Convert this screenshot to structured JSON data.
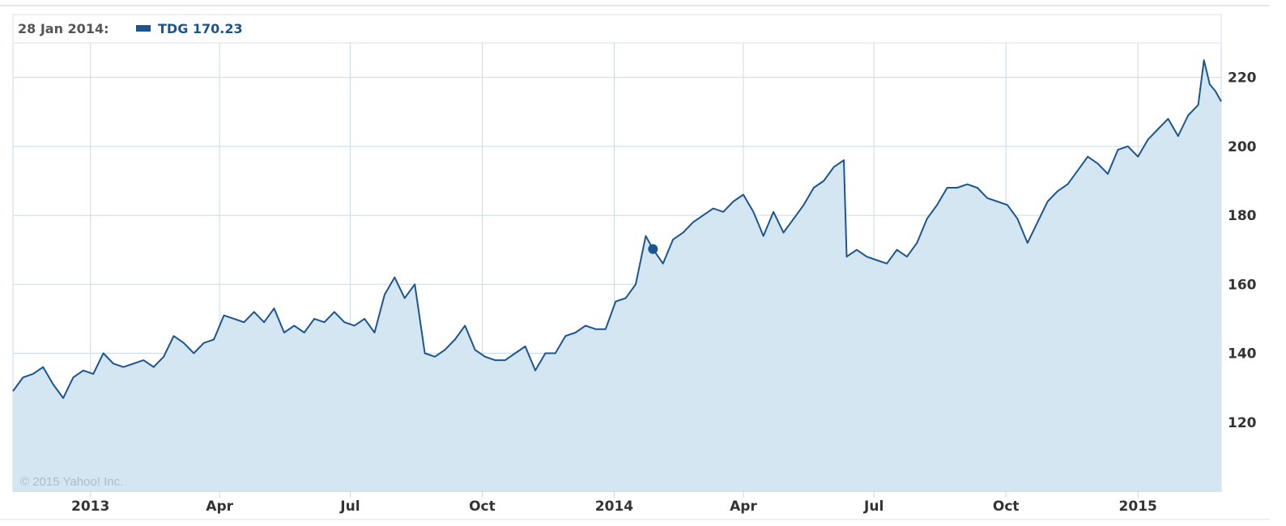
{
  "colors": {
    "line": "#1a5590",
    "area": "#d5e6f3",
    "grid": "#c9dae8",
    "axis_text": "#333333"
  },
  "readout": {
    "date": "28 Jan 2014:",
    "label": "TDG 170.23"
  },
  "copyright": "© 2015 Yahoo! Inc.",
  "chart_data": {
    "type": "area",
    "title": "",
    "xlabel": "",
    "ylabel": "",
    "ylim": [
      100,
      230
    ],
    "xlim": [
      "2012-11-08",
      "2015-02-28"
    ],
    "grid": true,
    "y_ticks": [
      120,
      140,
      160,
      180,
      200,
      220
    ],
    "x_ticks": [
      {
        "date": "2013-01-01",
        "label": "2013"
      },
      {
        "date": "2013-04-01",
        "label": "Apr"
      },
      {
        "date": "2013-07-01",
        "label": "Jul"
      },
      {
        "date": "2013-10-01",
        "label": "Oct"
      },
      {
        "date": "2014-01-01",
        "label": "2014"
      },
      {
        "date": "2014-04-01",
        "label": "Apr"
      },
      {
        "date": "2014-07-01",
        "label": "Jul"
      },
      {
        "date": "2014-10-01",
        "label": "Oct"
      },
      {
        "date": "2015-01-01",
        "label": "2015"
      }
    ],
    "highlight": {
      "date": "2014-01-28",
      "value": 170.23
    },
    "series": [
      {
        "name": "TDG",
        "points": [
          [
            "2012-11-08",
            129
          ],
          [
            "2012-11-15",
            133
          ],
          [
            "2012-11-22",
            134
          ],
          [
            "2012-11-29",
            136
          ],
          [
            "2012-12-06",
            131
          ],
          [
            "2012-12-13",
            127
          ],
          [
            "2012-12-20",
            133
          ],
          [
            "2012-12-27",
            135
          ],
          [
            "2013-01-03",
            134
          ],
          [
            "2013-01-10",
            140
          ],
          [
            "2013-01-17",
            137
          ],
          [
            "2013-01-24",
            136
          ],
          [
            "2013-01-31",
            137
          ],
          [
            "2013-02-07",
            138
          ],
          [
            "2013-02-14",
            136
          ],
          [
            "2013-02-21",
            139
          ],
          [
            "2013-02-28",
            145
          ],
          [
            "2013-03-07",
            143
          ],
          [
            "2013-03-14",
            140
          ],
          [
            "2013-03-21",
            143
          ],
          [
            "2013-03-28",
            144
          ],
          [
            "2013-04-04",
            151
          ],
          [
            "2013-04-11",
            150
          ],
          [
            "2013-04-18",
            149
          ],
          [
            "2013-04-25",
            152
          ],
          [
            "2013-05-02",
            149
          ],
          [
            "2013-05-09",
            153
          ],
          [
            "2013-05-16",
            146
          ],
          [
            "2013-05-23",
            148
          ],
          [
            "2013-05-30",
            146
          ],
          [
            "2013-06-06",
            150
          ],
          [
            "2013-06-13",
            149
          ],
          [
            "2013-06-20",
            152
          ],
          [
            "2013-06-27",
            149
          ],
          [
            "2013-07-04",
            148
          ],
          [
            "2013-07-11",
            150
          ],
          [
            "2013-07-18",
            146
          ],
          [
            "2013-07-25",
            157
          ],
          [
            "2013-08-01",
            162
          ],
          [
            "2013-08-08",
            156
          ],
          [
            "2013-08-15",
            160
          ],
          [
            "2013-08-22",
            140
          ],
          [
            "2013-08-29",
            139
          ],
          [
            "2013-09-05",
            141
          ],
          [
            "2013-09-12",
            144
          ],
          [
            "2013-09-19",
            148
          ],
          [
            "2013-09-26",
            141
          ],
          [
            "2013-10-03",
            139
          ],
          [
            "2013-10-10",
            138
          ],
          [
            "2013-10-17",
            138
          ],
          [
            "2013-10-24",
            140
          ],
          [
            "2013-10-31",
            142
          ],
          [
            "2013-11-07",
            135
          ],
          [
            "2013-11-14",
            140
          ],
          [
            "2013-11-21",
            140
          ],
          [
            "2013-11-28",
            145
          ],
          [
            "2013-12-05",
            146
          ],
          [
            "2013-12-12",
            148
          ],
          [
            "2013-12-19",
            147
          ],
          [
            "2013-12-26",
            147
          ],
          [
            "2014-01-02",
            155
          ],
          [
            "2014-01-09",
            156
          ],
          [
            "2014-01-16",
            160
          ],
          [
            "2014-01-23",
            174
          ],
          [
            "2014-01-28",
            170.23
          ],
          [
            "2014-02-04",
            166
          ],
          [
            "2014-02-11",
            173
          ],
          [
            "2014-02-18",
            175
          ],
          [
            "2014-02-25",
            178
          ],
          [
            "2014-03-04",
            180
          ],
          [
            "2014-03-11",
            182
          ],
          [
            "2014-03-18",
            181
          ],
          [
            "2014-03-25",
            184
          ],
          [
            "2014-04-01",
            186
          ],
          [
            "2014-04-08",
            181
          ],
          [
            "2014-04-15",
            174
          ],
          [
            "2014-04-22",
            181
          ],
          [
            "2014-04-29",
            175
          ],
          [
            "2014-05-06",
            179
          ],
          [
            "2014-05-13",
            183
          ],
          [
            "2014-05-20",
            188
          ],
          [
            "2014-05-27",
            190
          ],
          [
            "2014-06-03",
            194
          ],
          [
            "2014-06-10",
            196
          ],
          [
            "2014-06-12",
            168
          ],
          [
            "2014-06-19",
            170
          ],
          [
            "2014-06-26",
            168
          ],
          [
            "2014-07-03",
            167
          ],
          [
            "2014-07-10",
            166
          ],
          [
            "2014-07-17",
            170
          ],
          [
            "2014-07-24",
            168
          ],
          [
            "2014-07-31",
            172
          ],
          [
            "2014-08-07",
            179
          ],
          [
            "2014-08-14",
            183
          ],
          [
            "2014-08-21",
            188
          ],
          [
            "2014-08-28",
            188
          ],
          [
            "2014-09-04",
            189
          ],
          [
            "2014-09-11",
            188
          ],
          [
            "2014-09-18",
            185
          ],
          [
            "2014-09-25",
            184
          ],
          [
            "2014-10-02",
            183
          ],
          [
            "2014-10-09",
            179
          ],
          [
            "2014-10-16",
            172
          ],
          [
            "2014-10-23",
            178
          ],
          [
            "2014-10-30",
            184
          ],
          [
            "2014-11-06",
            187
          ],
          [
            "2014-11-13",
            189
          ],
          [
            "2014-11-20",
            193
          ],
          [
            "2014-11-27",
            197
          ],
          [
            "2014-12-04",
            195
          ],
          [
            "2014-12-11",
            192
          ],
          [
            "2014-12-18",
            199
          ],
          [
            "2014-12-25",
            200
          ],
          [
            "2015-01-01",
            197
          ],
          [
            "2015-01-08",
            202
          ],
          [
            "2015-01-15",
            205
          ],
          [
            "2015-01-22",
            208
          ],
          [
            "2015-01-29",
            203
          ],
          [
            "2015-02-05",
            209
          ],
          [
            "2015-02-12",
            212
          ],
          [
            "2015-02-16",
            225
          ],
          [
            "2015-02-20",
            218
          ],
          [
            "2015-02-24",
            216
          ],
          [
            "2015-02-28",
            213
          ]
        ]
      }
    ]
  }
}
